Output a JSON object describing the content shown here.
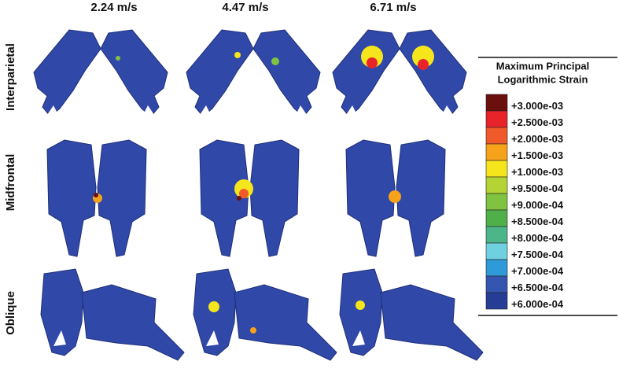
{
  "columns": [
    "2.24 m/s",
    "4.47 m/s",
    "6.71 m/s"
  ],
  "rows": [
    "Interparietal",
    "Midfrontal",
    "Oblique"
  ],
  "legend": {
    "title": [
      "Maximum Principal",
      "Logarithmic Strain"
    ],
    "entries": [
      {
        "label": "+3.000e-03",
        "color": "#6b0f0f"
      },
      {
        "label": "+2.500e-03",
        "color": "#e8232a"
      },
      {
        "label": "+2.000e-03",
        "color": "#f0592a"
      },
      {
        "label": "+1.500e-03",
        "color": "#f7a21b"
      },
      {
        "label": "+1.000e-03",
        "color": "#f5e51c"
      },
      {
        "label": "+9.500e-04",
        "color": "#b4d334"
      },
      {
        "label": "+9.000e-04",
        "color": "#7fc341"
      },
      {
        "label": "+8.500e-04",
        "color": "#4fb04a"
      },
      {
        "label": "+8.000e-04",
        "color": "#4db58a"
      },
      {
        "label": "+7.500e-04",
        "color": "#6fd0e0"
      },
      {
        "label": "+7.000e-04",
        "color": "#2f9ad8"
      },
      {
        "label": "+6.500e-04",
        "color": "#3556b0"
      },
      {
        "label": "+6.000e-04",
        "color": "#263d96"
      }
    ]
  }
}
